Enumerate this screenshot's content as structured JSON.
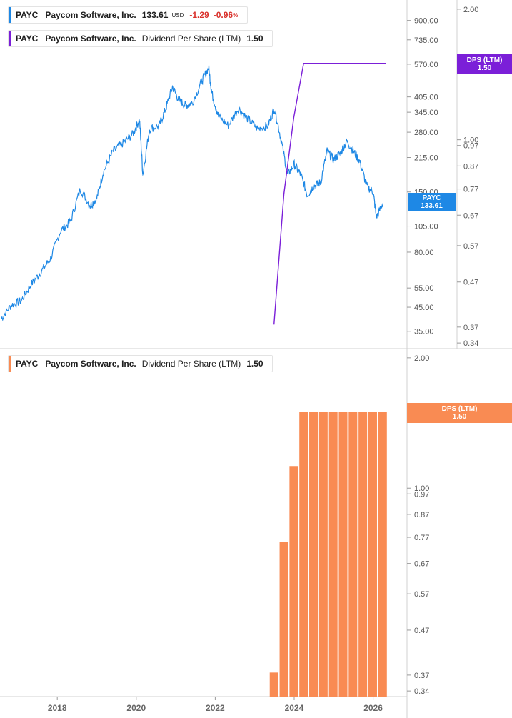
{
  "colors": {
    "price": "#1e88e5",
    "dps_line": "#7b1fd8",
    "dps_bar": "#f98b53",
    "negative": "#d9312b",
    "axis_text": "#555555",
    "divider": "#d0d0d0"
  },
  "legends": {
    "price": {
      "ticker": "PAYC",
      "company": "Paycom Software, Inc.",
      "value": "133.61",
      "currency": "USD",
      "change": "-1.29",
      "pct": "-0.96",
      "pct_unit": "%"
    },
    "dps_top": {
      "ticker": "PAYC",
      "company": "Paycom Software, Inc.",
      "field": "Dividend Per Share (LTM)",
      "value": "1.50"
    },
    "dps_bottom": {
      "ticker": "PAYC",
      "company": "Paycom Software, Inc.",
      "field": "Dividend Per Share (LTM)",
      "value": "1.50"
    }
  },
  "tags": {
    "price": {
      "line1": "PAYC",
      "line2": "133.61"
    },
    "dps_top": {
      "line1": "DPS (LTM)",
      "line2": "1.50"
    },
    "dps_bottom": {
      "line1": "DPS (LTM)",
      "line2": "1.50"
    }
  },
  "chart_data": [
    {
      "type": "line",
      "scale": "log",
      "price_axis": {
        "ticks": [
          "900.00",
          "735.00",
          "570.00",
          "405.00",
          "345.00",
          "280.00",
          "215.00",
          "150.00",
          "105.00",
          "80.00",
          "55.00",
          "45.00",
          "35.00"
        ],
        "range": [
          31,
          1050
        ]
      },
      "dps_axis": {
        "ticks": [
          "2.00",
          "1.00",
          "0.97",
          "0.87",
          "0.77",
          "0.67",
          "0.57",
          "0.47",
          "0.37",
          "0.34"
        ],
        "range": [
          0.33,
          2.1
        ]
      },
      "series": [
        {
          "name": "PAYC",
          "axis": "price",
          "points": [
            [
              "2016-08",
              40
            ],
            [
              "2016-11",
              46
            ],
            [
              "2017-02",
              48
            ],
            [
              "2017-05",
              57
            ],
            [
              "2017-08",
              65
            ],
            [
              "2017-11",
              75
            ],
            [
              "2018-02",
              100
            ],
            [
              "2018-05",
              110
            ],
            [
              "2018-08",
              155
            ],
            [
              "2018-11",
              130
            ],
            [
              "2019-01",
              140
            ],
            [
              "2019-03",
              185
            ],
            [
              "2019-06",
              230
            ],
            [
              "2019-09",
              250
            ],
            [
              "2019-12",
              275
            ],
            [
              "2020-02",
              320
            ],
            [
              "2020-03",
              180
            ],
            [
              "2020-05",
              290
            ],
            [
              "2020-08",
              300
            ],
            [
              "2020-10",
              360
            ],
            [
              "2020-12",
              450
            ],
            [
              "2021-02",
              390
            ],
            [
              "2021-04",
              370
            ],
            [
              "2021-06",
              380
            ],
            [
              "2021-09",
              480
            ],
            [
              "2021-11",
              550
            ],
            [
              "2021-12",
              420
            ],
            [
              "2022-02",
              330
            ],
            [
              "2022-05",
              300
            ],
            [
              "2022-08",
              360
            ],
            [
              "2022-11",
              320
            ],
            [
              "2023-02",
              290
            ],
            [
              "2023-05",
              300
            ],
            [
              "2023-07",
              360
            ],
            [
              "2023-09",
              260
            ],
            [
              "2023-11",
              180
            ],
            [
              "2024-01",
              200
            ],
            [
              "2024-03",
              180
            ],
            [
              "2024-05",
              145
            ],
            [
              "2024-07",
              160
            ],
            [
              "2024-09",
              165
            ],
            [
              "2024-11",
              230
            ],
            [
              "2025-01",
              210
            ],
            [
              "2025-03",
              225
            ],
            [
              "2025-05",
              255
            ],
            [
              "2025-07",
              230
            ],
            [
              "2025-09",
              205
            ],
            [
              "2025-11",
              160
            ],
            [
              "2026-01",
              150
            ],
            [
              "2026-02",
              115
            ],
            [
              "2026-04",
              133.61
            ]
          ]
        },
        {
          "name": "Dividend Per Share (LTM)",
          "axis": "dps",
          "points": [
            [
              "2023-06",
              0.375
            ],
            [
              "2023-09",
              0.75
            ],
            [
              "2023-12",
              1.125
            ],
            [
              "2024-03",
              1.5
            ],
            [
              "2026-04",
              1.5
            ]
          ]
        }
      ]
    },
    {
      "type": "bar",
      "scale": "log",
      "x_labels": [
        "2018",
        "2020",
        "2022",
        "2024",
        "2026"
      ],
      "y_axis": {
        "ticks": [
          "2.00",
          "1.00",
          "0.97",
          "0.87",
          "0.77",
          "0.67",
          "0.57",
          "0.47",
          "0.37",
          "0.34"
        ],
        "range": [
          0.33,
          2.1
        ]
      },
      "series": [
        {
          "name": "Dividend Per Share (LTM)",
          "x": [
            "2023-06",
            "2023-09",
            "2023-12",
            "2024-03",
            "2024-06",
            "2024-09",
            "2024-12",
            "2025-03",
            "2025-06",
            "2025-09",
            "2025-12",
            "2026-03"
          ],
          "values": [
            0.375,
            0.75,
            1.125,
            1.5,
            1.5,
            1.5,
            1.5,
            1.5,
            1.5,
            1.5,
            1.5,
            1.5
          ]
        }
      ]
    }
  ]
}
